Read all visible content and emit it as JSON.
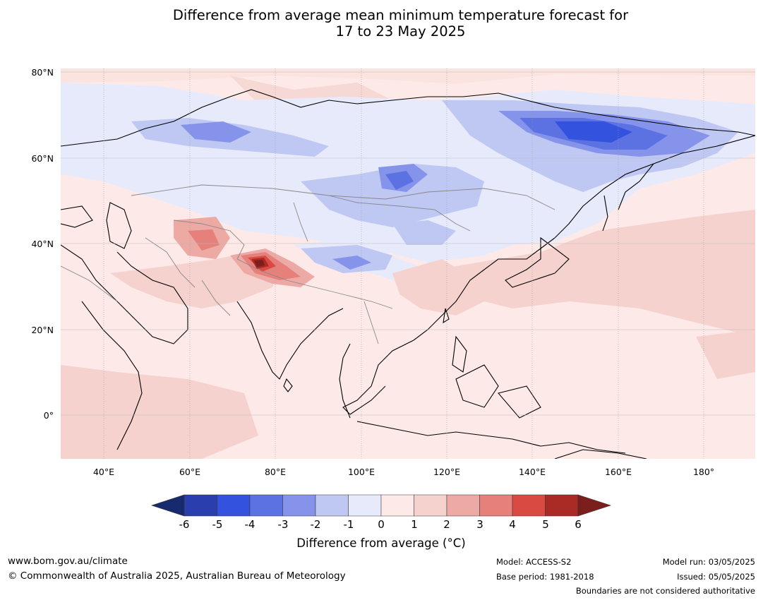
{
  "title": {
    "line1": "Difference from average mean minimum temperature forecast for",
    "line2": "17 to 23 May 2025"
  },
  "map": {
    "lat_ticks": [
      "80°N",
      "60°N",
      "40°N",
      "20°N",
      "0°"
    ],
    "lon_ticks": [
      "40°E",
      "60°E",
      "80°E",
      "100°E",
      "120°E",
      "140°E",
      "160°E",
      "180°"
    ],
    "lat_values": [
      80,
      60,
      40,
      20,
      0
    ],
    "lon_values": [
      40,
      60,
      80,
      100,
      120,
      140,
      160,
      180
    ],
    "extent": {
      "lon_min": 30,
      "lon_max": 192,
      "lat_min": -10,
      "lat_max": 81
    },
    "ocean_color": "#fbe9e7",
    "country_line_color": "#888888",
    "coast_line_color": "#000000"
  },
  "colorbar": {
    "label": "Difference from average (°C)",
    "ticks": [
      "-6",
      "-5",
      "-4",
      "-3",
      "-2",
      "-1",
      "0",
      "1",
      "2",
      "3",
      "4",
      "5",
      "6"
    ],
    "colors": [
      "#172a6e",
      "#2a3fad",
      "#3352dd",
      "#5c72e3",
      "#8594ea",
      "#bfc7f3",
      "#e7eafb",
      "#fdeae8",
      "#f6d2cf",
      "#edaaa5",
      "#e5807b",
      "#d94a42",
      "#aa2a25",
      "#7a1f1c"
    ]
  },
  "footer": {
    "website": "www.bom.gov.au/climate",
    "copyright": "© Commonwealth of Australia 2025, Australian Bureau of Meteorology",
    "model": "Model: ACCESS-S2",
    "base_period": "Base period: 1981-2018",
    "model_run": "Model run: 03/05/2025",
    "issued": "Issued: 05/05/2025",
    "disclaimer": "Boundaries are not considered authoritative"
  }
}
